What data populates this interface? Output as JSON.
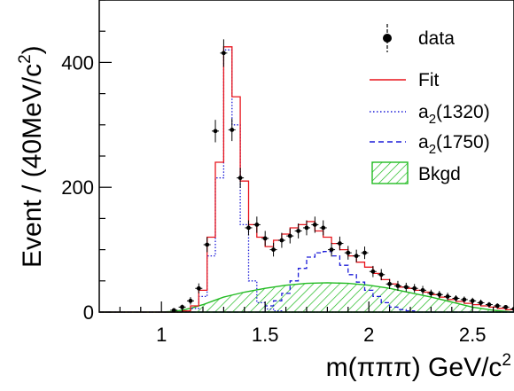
{
  "chart_data": {
    "type": "line",
    "xlabel": "m(πππ) GeV/c",
    "xlabel_sup": "2",
    "ylabel": "Event / (40MeV/c",
    "ylabel_sup": "2",
    "ylabel_close": ")",
    "xlim": [
      0.7,
      2.7
    ],
    "ylim": [
      0,
      500
    ],
    "xticks": [
      1,
      1.5,
      2,
      2.5
    ],
    "xtick_labels": [
      "1",
      "1.5",
      "2",
      "2.5"
    ],
    "yticks": [
      0,
      200,
      400
    ],
    "ytick_labels": [
      "0",
      "200",
      "400"
    ],
    "legend": {
      "position": "top-right",
      "entries": [
        {
          "key": "data",
          "label": "data"
        },
        {
          "key": "fit",
          "label": "Fit"
        },
        {
          "key": "a2_1320",
          "label": "a",
          "sub": "2",
          "rest": "(1320)"
        },
        {
          "key": "a2_1750",
          "label": "a",
          "sub": "2",
          "rest": "(1750)"
        },
        {
          "key": "bkgd",
          "label": "Bkgd"
        }
      ]
    },
    "colors": {
      "fit": "#e8141c",
      "a2_1320": "#1c1cd8",
      "a2_1750": "#1c1cd8",
      "bkgd": "#22bb22",
      "data": "#000000"
    },
    "bin_edges": [
      0.7,
      0.74,
      0.78,
      0.82,
      0.86,
      0.9,
      0.94,
      0.98,
      1.02,
      1.06,
      1.1,
      1.14,
      1.18,
      1.22,
      1.26,
      1.3,
      1.34,
      1.38,
      1.42,
      1.46,
      1.5,
      1.54,
      1.58,
      1.62,
      1.66,
      1.7,
      1.74,
      1.78,
      1.82,
      1.86,
      1.9,
      1.94,
      1.98,
      2.02,
      2.06,
      2.1,
      2.14,
      2.18,
      2.22,
      2.26,
      2.3,
      2.34,
      2.38,
      2.42,
      2.46,
      2.5,
      2.54,
      2.58,
      2.62,
      2.66,
      2.7
    ],
    "series": [
      {
        "name": "Fit",
        "style": "solid-step",
        "values": [
          0,
          0,
          0,
          0,
          0,
          0,
          0,
          0,
          0,
          0,
          2,
          10,
          35,
          120,
          240,
          425,
          345,
          210,
          140,
          120,
          105,
          115,
          125,
          135,
          140,
          145,
          130,
          120,
          110,
          100,
          90,
          80,
          72,
          62,
          52,
          45,
          40,
          38,
          35,
          32,
          28,
          24,
          20,
          17,
          14,
          12,
          10,
          8,
          6,
          4
        ]
      },
      {
        "name": "a2(1320)",
        "style": "dotted-step",
        "values": [
          0,
          0,
          0,
          0,
          0,
          0,
          0,
          0,
          0,
          0,
          1,
          6,
          25,
          90,
          215,
          420,
          300,
          140,
          50,
          15,
          5,
          2,
          0,
          0,
          0,
          0,
          0,
          0,
          0,
          0,
          0,
          0,
          0,
          0,
          0,
          0,
          0,
          0,
          0,
          0,
          0,
          0,
          0,
          0,
          0,
          0,
          0,
          0,
          0,
          0
        ]
      },
      {
        "name": "a2(1750)",
        "style": "dashed-step",
        "values": [
          0,
          0,
          0,
          0,
          0,
          0,
          0,
          0,
          0,
          0,
          0,
          0,
          0,
          0,
          0,
          0,
          0,
          0,
          0,
          0,
          10,
          18,
          30,
          50,
          70,
          88,
          95,
          97,
          90,
          75,
          60,
          48,
          35,
          25,
          15,
          8,
          4,
          2,
          0,
          0,
          0,
          0,
          0,
          0,
          0,
          0,
          0,
          0,
          0,
          0
        ]
      },
      {
        "name": "Bkgd",
        "style": "hatched-area",
        "x": [
          0.7,
          1.0,
          1.05,
          1.1,
          1.15,
          1.2,
          1.25,
          1.3,
          1.4,
          1.5,
          1.6,
          1.7,
          1.8,
          1.9,
          2.0,
          2.1,
          2.2,
          2.3,
          2.4,
          2.5,
          2.6,
          2.7
        ],
        "values": [
          0,
          0,
          1,
          3,
          7,
          12,
          18,
          24,
          32,
          38,
          43,
          46,
          47,
          46,
          43,
          38,
          31,
          24,
          16,
          8,
          3,
          0
        ]
      }
    ],
    "data_points": {
      "name": "data",
      "x": [
        1.06,
        1.1,
        1.14,
        1.18,
        1.22,
        1.26,
        1.3,
        1.34,
        1.38,
        1.42,
        1.46,
        1.5,
        1.54,
        1.58,
        1.62,
        1.66,
        1.7,
        1.74,
        1.78,
        1.82,
        1.86,
        1.9,
        1.94,
        1.98,
        2.02,
        2.06,
        2.1,
        2.14,
        2.18,
        2.22,
        2.26,
        2.3,
        2.34,
        2.38,
        2.42,
        2.46,
        2.5,
        2.54,
        2.58,
        2.62,
        2.66,
        2.7
      ],
      "y": [
        3,
        8,
        18,
        38,
        108,
        290,
        415,
        292,
        215,
        135,
        140,
        118,
        100,
        115,
        122,
        130,
        135,
        140,
        135,
        100,
        110,
        95,
        90,
        95,
        65,
        60,
        45,
        42,
        40,
        38,
        35,
        30,
        28,
        25,
        22,
        20,
        18,
        15,
        12,
        10,
        8,
        5
      ],
      "err": [
        3,
        4,
        6,
        8,
        12,
        18,
        22,
        18,
        16,
        12,
        13,
        12,
        11,
        12,
        12,
        12,
        12,
        13,
        12,
        11,
        11,
        11,
        10,
        10,
        9,
        9,
        8,
        8,
        7,
        7,
        7,
        6,
        6,
        6,
        5,
        5,
        5,
        5,
        4,
        4,
        3,
        3
      ]
    }
  }
}
